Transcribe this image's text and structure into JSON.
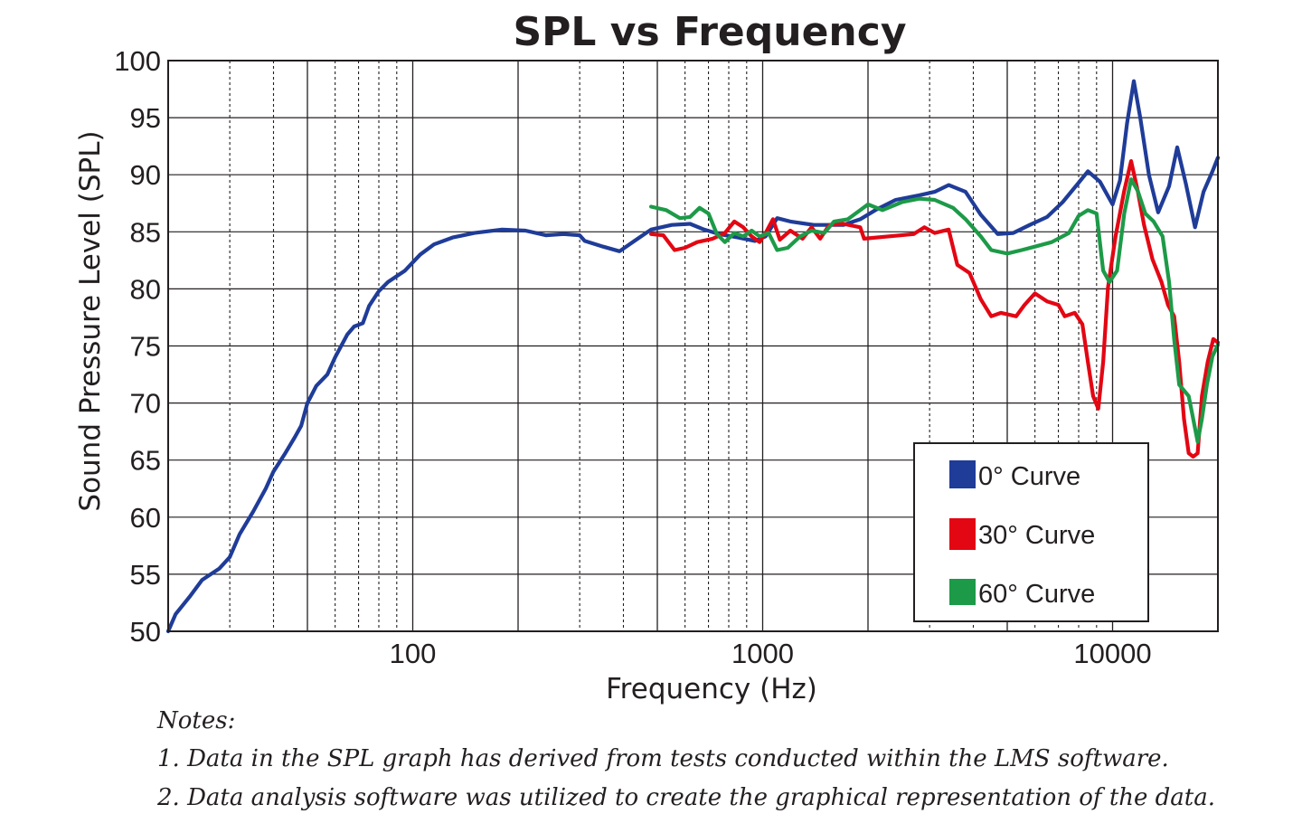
{
  "chart_data": {
    "type": "line",
    "title": "SPL vs Frequency",
    "xlabel": "Frequency (Hz)",
    "ylabel": "Sound Pressure Level (SPL)",
    "xscale": "log",
    "xlim": [
      20,
      20000
    ],
    "ylim": [
      50,
      100
    ],
    "xticks": [
      {
        "value": 100,
        "label": "100"
      },
      {
        "value": 1000,
        "label": "1000"
      },
      {
        "value": 10000,
        "label": "10000"
      }
    ],
    "yticks": [
      {
        "value": 50,
        "label": "50"
      },
      {
        "value": 55,
        "label": "55"
      },
      {
        "value": 60,
        "label": "60"
      },
      {
        "value": 65,
        "label": "65"
      },
      {
        "value": 70,
        "label": "70"
      },
      {
        "value": 75,
        "label": "75"
      },
      {
        "value": 80,
        "label": "80"
      },
      {
        "value": 85,
        "label": "85"
      },
      {
        "value": 90,
        "label": "90"
      },
      {
        "value": 95,
        "label": "95"
      },
      {
        "value": 100,
        "label": "100"
      }
    ],
    "grid": true,
    "legend_position": "bottom-right",
    "series": [
      {
        "name": "0° Curve",
        "color": "#1f3c98",
        "points": [
          [
            20,
            50
          ],
          [
            21,
            51.5
          ],
          [
            23,
            53
          ],
          [
            25,
            54.5
          ],
          [
            28,
            55.5
          ],
          [
            30,
            56.5
          ],
          [
            32,
            58.5
          ],
          [
            35,
            60.5
          ],
          [
            38,
            62.5
          ],
          [
            40,
            64
          ],
          [
            43,
            65.5
          ],
          [
            46,
            67
          ],
          [
            48,
            68
          ],
          [
            50,
            70
          ],
          [
            53,
            71.5
          ],
          [
            57,
            72.5
          ],
          [
            60,
            74
          ],
          [
            65,
            76
          ],
          [
            68,
            76.7
          ],
          [
            72,
            77
          ],
          [
            75,
            78.5
          ],
          [
            80,
            79.8
          ],
          [
            85,
            80.6
          ],
          [
            95,
            81.6
          ],
          [
            105,
            83
          ],
          [
            115,
            83.9
          ],
          [
            130,
            84.5
          ],
          [
            150,
            84.9
          ],
          [
            180,
            85.2
          ],
          [
            210,
            85.1
          ],
          [
            240,
            84.7
          ],
          [
            270,
            84.8
          ],
          [
            300,
            84.7
          ],
          [
            310,
            84.2
          ],
          [
            350,
            83.7
          ],
          [
            390,
            83.3
          ],
          [
            430,
            84.2
          ],
          [
            480,
            85.2
          ],
          [
            550,
            85.6
          ],
          [
            620,
            85.7
          ],
          [
            680,
            85.2
          ],
          [
            750,
            84.8
          ],
          [
            850,
            84.5
          ],
          [
            950,
            84.2
          ],
          [
            1020,
            84.6
          ],
          [
            1100,
            86.2
          ],
          [
            1200,
            85.9
          ],
          [
            1400,
            85.6
          ],
          [
            1700,
            85.6
          ],
          [
            1900,
            86.1
          ],
          [
            2100,
            86.9
          ],
          [
            2400,
            87.8
          ],
          [
            2800,
            88.2
          ],
          [
            3100,
            88.5
          ],
          [
            3400,
            89.1
          ],
          [
            3800,
            88.5
          ],
          [
            4200,
            86.5
          ],
          [
            4700,
            84.8
          ],
          [
            5200,
            84.9
          ],
          [
            5800,
            85.6
          ],
          [
            6500,
            86.3
          ],
          [
            7200,
            87.6
          ],
          [
            8000,
            89.3
          ],
          [
            8500,
            90.3
          ],
          [
            9200,
            89.4
          ],
          [
            10000,
            87.4
          ],
          [
            10500,
            89.5
          ],
          [
            11000,
            94.5
          ],
          [
            11500,
            98.2
          ],
          [
            12000,
            95
          ],
          [
            12700,
            90
          ],
          [
            13500,
            86.7
          ],
          [
            14500,
            89
          ],
          [
            15300,
            92.4
          ],
          [
            16200,
            89.2
          ],
          [
            17200,
            85.4
          ],
          [
            18200,
            88.5
          ],
          [
            19300,
            90.3
          ],
          [
            20000,
            91.5
          ]
        ]
      },
      {
        "name": "30° Curve",
        "color": "#e30613",
        "points": [
          [
            480,
            84.8
          ],
          [
            520,
            84.7
          ],
          [
            560,
            83.4
          ],
          [
            600,
            83.6
          ],
          [
            650,
            84.1
          ],
          [
            720,
            84.4
          ],
          [
            780,
            84.9
          ],
          [
            830,
            85.9
          ],
          [
            880,
            85.4
          ],
          [
            930,
            84.6
          ],
          [
            980,
            84.1
          ],
          [
            1020,
            84.9
          ],
          [
            1070,
            86.1
          ],
          [
            1120,
            84.3
          ],
          [
            1200,
            85.1
          ],
          [
            1300,
            84.4
          ],
          [
            1380,
            85.4
          ],
          [
            1460,
            84.4
          ],
          [
            1550,
            85.6
          ],
          [
            1700,
            85.7
          ],
          [
            1900,
            85.4
          ],
          [
            1950,
            84.4
          ],
          [
            2300,
            84.6
          ],
          [
            2700,
            84.8
          ],
          [
            2900,
            85.4
          ],
          [
            3100,
            84.9
          ],
          [
            3400,
            85.2
          ],
          [
            3600,
            82.1
          ],
          [
            3900,
            81.4
          ],
          [
            4200,
            79.1
          ],
          [
            4500,
            77.6
          ],
          [
            4800,
            77.9
          ],
          [
            5300,
            77.6
          ],
          [
            5600,
            78.6
          ],
          [
            6000,
            79.6
          ],
          [
            6500,
            78.9
          ],
          [
            7000,
            78.6
          ],
          [
            7300,
            77.6
          ],
          [
            7800,
            77.9
          ],
          [
            8200,
            76.9
          ],
          [
            8500,
            73.6
          ],
          [
            8800,
            70.6
          ],
          [
            9100,
            69.5
          ],
          [
            9400,
            73.6
          ],
          [
            9700,
            80.1
          ],
          [
            10200,
            84.6
          ],
          [
            10800,
            88.6
          ],
          [
            11300,
            91.2
          ],
          [
            11800,
            88.6
          ],
          [
            12300,
            85.6
          ],
          [
            13000,
            82.6
          ],
          [
            13800,
            80.6
          ],
          [
            14400,
            78.6
          ],
          [
            15000,
            77.6
          ],
          [
            15500,
            73.6
          ],
          [
            16000,
            68.6
          ],
          [
            16500,
            65.6
          ],
          [
            17000,
            65.3
          ],
          [
            17500,
            65.6
          ],
          [
            18000,
            70.6
          ],
          [
            18700,
            73.6
          ],
          [
            19400,
            75.6
          ],
          [
            20000,
            75.3
          ]
        ]
      },
      {
        "name": "60° Curve",
        "color": "#1d9a48",
        "points": [
          [
            480,
            87.2
          ],
          [
            530,
            86.9
          ],
          [
            580,
            86.2
          ],
          [
            620,
            86.3
          ],
          [
            660,
            87.1
          ],
          [
            700,
            86.6
          ],
          [
            740,
            84.8
          ],
          [
            780,
            84.1
          ],
          [
            830,
            84.9
          ],
          [
            880,
            84.6
          ],
          [
            930,
            85.1
          ],
          [
            980,
            84.6
          ],
          [
            1040,
            84.9
          ],
          [
            1100,
            83.4
          ],
          [
            1180,
            83.6
          ],
          [
            1280,
            84.6
          ],
          [
            1380,
            85.1
          ],
          [
            1500,
            84.9
          ],
          [
            1600,
            85.9
          ],
          [
            1750,
            86.1
          ],
          [
            1900,
            86.9
          ],
          [
            2000,
            87.4
          ],
          [
            2200,
            86.9
          ],
          [
            2500,
            87.6
          ],
          [
            2800,
            87.9
          ],
          [
            3100,
            87.8
          ],
          [
            3500,
            87.1
          ],
          [
            3800,
            86.1
          ],
          [
            4200,
            84.6
          ],
          [
            4500,
            83.4
          ],
          [
            5000,
            83.1
          ],
          [
            5500,
            83.4
          ],
          [
            6000,
            83.7
          ],
          [
            6700,
            84.1
          ],
          [
            7500,
            84.9
          ],
          [
            8000,
            86.4
          ],
          [
            8500,
            86.9
          ],
          [
            9000,
            86.6
          ],
          [
            9400,
            81.6
          ],
          [
            9800,
            80.6
          ],
          [
            10300,
            81.6
          ],
          [
            10800,
            86.6
          ],
          [
            11300,
            89.6
          ],
          [
            11800,
            88.6
          ],
          [
            12400,
            86.6
          ],
          [
            13100,
            85.9
          ],
          [
            13900,
            84.6
          ],
          [
            14500,
            80.6
          ],
          [
            15000,
            75.6
          ],
          [
            15500,
            71.6
          ],
          [
            16000,
            71.1
          ],
          [
            16500,
            70.6
          ],
          [
            17000,
            68.6
          ],
          [
            17500,
            66.6
          ],
          [
            18000,
            68.6
          ],
          [
            18600,
            71.6
          ],
          [
            19300,
            74.1
          ],
          [
            20000,
            75.1
          ]
        ]
      }
    ]
  },
  "legend": {
    "items": [
      {
        "label": "0° Curve",
        "color": "#1f3c98"
      },
      {
        "label": "30° Curve",
        "color": "#e30613"
      },
      {
        "label": "60° Curve",
        "color": "#1d9a48"
      }
    ]
  },
  "notes": {
    "heading": "Notes:",
    "line1": "1. Data in the SPL graph has derived from tests conducted within the LMS software.",
    "line2": "2. Data analysis software was utilized to create the graphical representation of the data."
  }
}
